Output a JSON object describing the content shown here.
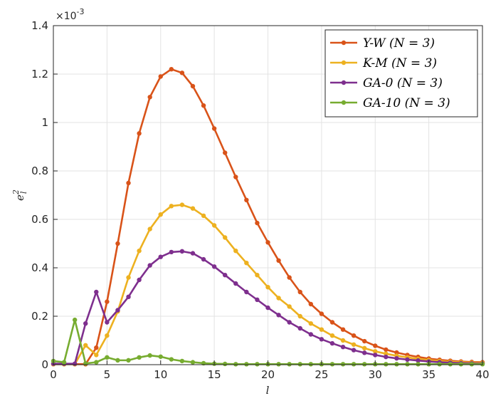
{
  "chart_data": {
    "type": "line",
    "xlabel": "l",
    "ylabel": "e",
    "ylabel_sup": "2",
    "ylabel_sub": "l",
    "y_multiplier": "×10",
    "y_multiplier_exp": "-3",
    "xlim": [
      0,
      40
    ],
    "ylim": [
      0,
      1.4
    ],
    "xticks": [
      0,
      5,
      10,
      15,
      20,
      25,
      30,
      35,
      40
    ],
    "yticks": [
      0,
      0.2,
      0.4,
      0.6,
      0.8,
      1,
      1.2,
      1.4
    ],
    "xtick_labels": [
      "0",
      "5",
      "10",
      "15",
      "20",
      "25",
      "30",
      "35",
      "40"
    ],
    "ytick_labels": [
      "0",
      "0.2",
      "0.4",
      "0.6",
      "0.8",
      "1",
      "1.2",
      "1.4"
    ],
    "grid": true,
    "legend_position": "top-right",
    "x": [
      0,
      1,
      2,
      3,
      4,
      5,
      6,
      7,
      8,
      9,
      10,
      11,
      12,
      13,
      14,
      15,
      16,
      17,
      18,
      19,
      20,
      21,
      22,
      23,
      24,
      25,
      26,
      27,
      28,
      29,
      30,
      31,
      32,
      33,
      34,
      35,
      36,
      37,
      38,
      39,
      40
    ],
    "series": [
      {
        "name": "Y-W (N = 3)",
        "color": "#D95319",
        "values": [
          0.002,
          0.002,
          0.002,
          0.002,
          0.07,
          0.26,
          0.5,
          0.75,
          0.955,
          1.105,
          1.19,
          1.22,
          1.205,
          1.15,
          1.07,
          0.975,
          0.875,
          0.775,
          0.68,
          0.585,
          0.505,
          0.43,
          0.36,
          0.3,
          0.25,
          0.21,
          0.175,
          0.145,
          0.12,
          0.097,
          0.078,
          0.062,
          0.05,
          0.04,
          0.032,
          0.025,
          0.02,
          0.016,
          0.013,
          0.011,
          0.01
        ]
      },
      {
        "name": "K-M (N = 3)",
        "color": "#EDB120",
        "values": [
          0.002,
          0.002,
          0.002,
          0.08,
          0.04,
          0.12,
          0.22,
          0.36,
          0.47,
          0.56,
          0.62,
          0.655,
          0.66,
          0.645,
          0.615,
          0.575,
          0.525,
          0.47,
          0.42,
          0.37,
          0.32,
          0.275,
          0.24,
          0.2,
          0.17,
          0.145,
          0.12,
          0.1,
          0.083,
          0.068,
          0.055,
          0.045,
          0.037,
          0.03,
          0.024,
          0.019,
          0.015,
          0.012,
          0.01,
          0.008,
          0.007
        ]
      },
      {
        "name": "GA-0 (N = 3)",
        "color": "#7E2F8E",
        "values": [
          0.004,
          0.004,
          0.004,
          0.17,
          0.3,
          0.175,
          0.225,
          0.28,
          0.35,
          0.41,
          0.445,
          0.465,
          0.468,
          0.46,
          0.435,
          0.405,
          0.37,
          0.335,
          0.3,
          0.268,
          0.235,
          0.205,
          0.175,
          0.15,
          0.125,
          0.105,
          0.088,
          0.073,
          0.06,
          0.049,
          0.04,
          0.032,
          0.026,
          0.021,
          0.017,
          0.013,
          0.01,
          0.008,
          0.006,
          0.005,
          0.004
        ]
      },
      {
        "name": "GA-10 (N = 3)",
        "color": "#77AC30",
        "values": [
          0.015,
          0.01,
          0.185,
          0.005,
          0.01,
          0.03,
          0.018,
          0.018,
          0.03,
          0.038,
          0.033,
          0.022,
          0.015,
          0.01,
          0.006,
          0.004,
          0.003,
          0.002,
          0.002,
          0.002,
          0.002,
          0.002,
          0.002,
          0.002,
          0.002,
          0.002,
          0.002,
          0.002,
          0.002,
          0.002,
          0.002,
          0.002,
          0.002,
          0.002,
          0.002,
          0.002,
          0.002,
          0.002,
          0.002,
          0.002,
          0.002
        ]
      }
    ]
  }
}
